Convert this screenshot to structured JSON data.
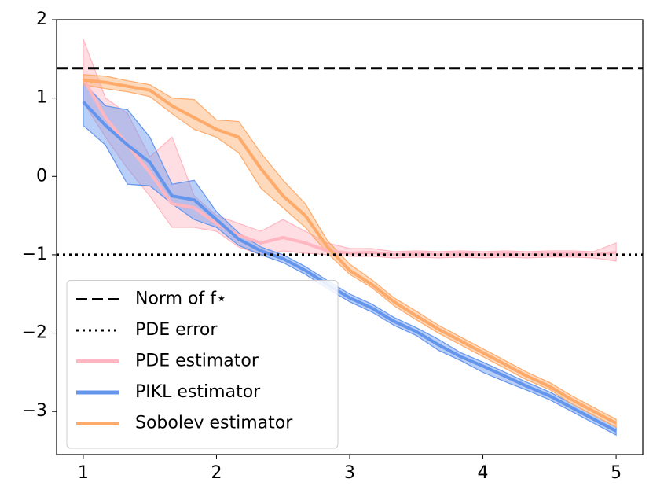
{
  "chart_data": {
    "type": "line",
    "x": [
      1,
      1.167,
      1.333,
      1.5,
      1.667,
      1.833,
      2,
      2.167,
      2.333,
      2.5,
      2.667,
      2.833,
      3,
      3.167,
      3.333,
      3.5,
      3.667,
      3.833,
      4,
      4.167,
      4.333,
      4.5,
      4.667,
      4.833,
      5
    ],
    "series": [
      {
        "name": "PDE estimator",
        "color": "#ffb6c1",
        "values": [
          1.25,
          0.75,
          0.4,
          0.05,
          -0.35,
          -0.4,
          -0.6,
          -0.75,
          -0.85,
          -0.78,
          -0.85,
          -0.95,
          -0.98,
          -0.97,
          -1.0,
          -0.99,
          -1.0,
          -0.99,
          -1.0,
          -0.99,
          -1.0,
          -0.99,
          -0.99,
          -1.0,
          -0.97
        ],
        "upper": [
          1.75,
          1.0,
          0.8,
          0.25,
          0.5,
          -0.25,
          -0.5,
          -0.6,
          -0.7,
          -0.55,
          -0.7,
          -0.85,
          -0.92,
          -0.92,
          -0.96,
          -0.95,
          -0.96,
          -0.95,
          -0.96,
          -0.95,
          -0.96,
          -0.95,
          -0.95,
          -0.96,
          -0.85
        ],
        "lower": [
          0.95,
          0.5,
          0.1,
          -0.25,
          -0.65,
          -0.65,
          -0.7,
          -0.9,
          -1.0,
          -0.95,
          -0.98,
          -1.0,
          -1.02,
          -1.02,
          -1.04,
          -1.03,
          -1.04,
          -1.03,
          -1.04,
          -1.03,
          -1.04,
          -1.03,
          -1.03,
          -1.04,
          -1.08
        ]
      },
      {
        "name": "PIKL estimator",
        "color": "#6495ed",
        "values": [
          0.95,
          0.65,
          0.4,
          0.18,
          -0.25,
          -0.3,
          -0.55,
          -0.8,
          -0.95,
          -1.05,
          -1.2,
          -1.38,
          -1.55,
          -1.68,
          -1.85,
          -1.98,
          -2.15,
          -2.3,
          -2.42,
          -2.55,
          -2.68,
          -2.8,
          -2.95,
          -3.1,
          -3.25
        ],
        "upper": [
          1.2,
          0.9,
          0.85,
          0.5,
          -0.1,
          -0.05,
          -0.45,
          -0.72,
          -0.9,
          -1.0,
          -1.15,
          -1.33,
          -1.5,
          -1.63,
          -1.8,
          -1.93,
          -2.08,
          -2.25,
          -2.37,
          -2.5,
          -2.63,
          -2.75,
          -2.9,
          -3.05,
          -3.2
        ],
        "lower": [
          0.65,
          0.4,
          -0.1,
          -0.12,
          -0.35,
          -0.55,
          -0.65,
          -0.88,
          -1.0,
          -1.1,
          -1.25,
          -1.43,
          -1.6,
          -1.73,
          -1.9,
          -2.03,
          -2.22,
          -2.35,
          -2.5,
          -2.62,
          -2.73,
          -2.85,
          -3.0,
          -3.15,
          -3.3
        ]
      },
      {
        "name": "Sobolev estimator",
        "color": "#fdaa6a",
        "values": [
          1.23,
          1.2,
          1.15,
          1.1,
          0.9,
          0.75,
          0.6,
          0.5,
          0.1,
          -0.25,
          -0.5,
          -0.9,
          -1.2,
          -1.38,
          -1.6,
          -1.78,
          -1.95,
          -2.1,
          -2.25,
          -2.4,
          -2.55,
          -2.68,
          -2.85,
          -3.0,
          -3.15
        ],
        "upper": [
          1.3,
          1.28,
          1.22,
          1.17,
          1.0,
          0.98,
          0.72,
          0.7,
          0.3,
          -0.05,
          -0.35,
          -0.82,
          -1.12,
          -1.32,
          -1.55,
          -1.72,
          -1.9,
          -2.05,
          -2.2,
          -2.35,
          -2.5,
          -2.63,
          -2.8,
          -2.95,
          -3.1
        ],
        "lower": [
          1.17,
          1.12,
          1.08,
          1.02,
          0.8,
          0.6,
          0.5,
          0.3,
          -0.15,
          -0.4,
          -0.65,
          -0.98,
          -1.25,
          -1.42,
          -1.65,
          -1.83,
          -2.0,
          -2.15,
          -2.3,
          -2.45,
          -2.6,
          -2.72,
          -2.9,
          -3.05,
          -3.2
        ]
      }
    ],
    "reference_lines": [
      {
        "name": "Norm of f⋆",
        "value": 1.38,
        "style": "dashed",
        "color": "#000000"
      },
      {
        "name": "PDE error",
        "value": -1,
        "style": "dotted",
        "color": "#000000"
      }
    ],
    "xlim": [
      0.8,
      5.2
    ],
    "ylim": [
      -3.55,
      2
    ],
    "xticks": [
      1,
      2,
      3,
      4,
      5
    ],
    "yticks": [
      {
        "value": -3,
        "label": "−3"
      },
      {
        "value": -2,
        "label": "−2"
      },
      {
        "value": -1,
        "label": "−1"
      },
      0,
      1,
      2
    ],
    "legend": "lower left"
  }
}
